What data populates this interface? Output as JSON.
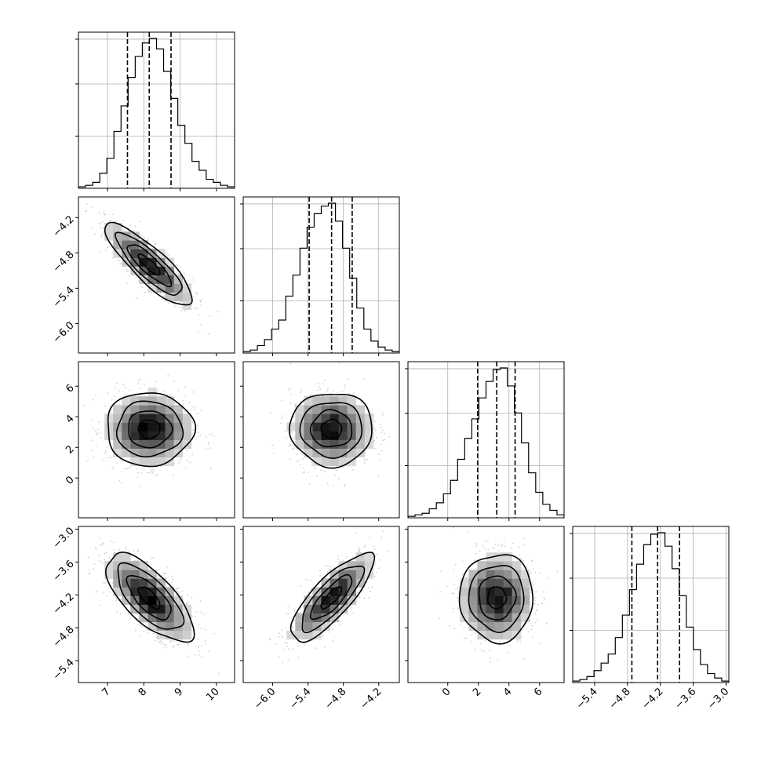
{
  "chart_data": {
    "type": "corner",
    "title": "",
    "parameters": [
      {
        "range": [
          6.2,
          10.5
        ],
        "ticks": [
          7,
          8,
          9,
          10
        ],
        "tick_labels": [
          "7",
          "8",
          "9",
          "10"
        ],
        "mean": 8.15,
        "sigma": 0.6,
        "quantiles": [
          7.55,
          8.15,
          8.75
        ]
      },
      {
        "range": [
          -6.5,
          -3.85
        ],
        "ticks": [
          -6.0,
          -5.4,
          -4.8,
          -4.2
        ],
        "tick_labels": [
          "−6.0",
          "−5.4",
          "−4.8",
          "−4.2"
        ],
        "mean": -5.0,
        "sigma": 0.35,
        "quantiles": [
          -5.38,
          -5.0,
          -4.65
        ]
      },
      {
        "range": [
          -2.6,
          7.6
        ],
        "ticks": [
          0,
          2,
          4,
          6
        ],
        "tick_labels": [
          "0",
          "2",
          "4",
          "6"
        ],
        "mean": 3.2,
        "sigma": 1.2,
        "quantiles": [
          1.95,
          3.2,
          4.4
        ]
      },
      {
        "range": [
          -5.8,
          -2.95
        ],
        "ticks": [
          -5.4,
          -4.8,
          -4.2,
          -3.6,
          -3.0
        ],
        "tick_labels": [
          "−5.4",
          "−4.8",
          "−4.2",
          "−3.6",
          "−3.0"
        ],
        "mean": -4.25,
        "sigma": 0.4,
        "quantiles": [
          -4.72,
          -4.25,
          -3.85
        ]
      }
    ],
    "histograms": [
      [
        0.01,
        0.02,
        0.04,
        0.1,
        0.2,
        0.38,
        0.55,
        0.74,
        0.88,
        0.97,
        1.0,
        0.93,
        0.78,
        0.6,
        0.42,
        0.3,
        0.18,
        0.12,
        0.06,
        0.04,
        0.02,
        0.01
      ],
      [
        0.01,
        0.02,
        0.05,
        0.09,
        0.16,
        0.22,
        0.38,
        0.52,
        0.7,
        0.84,
        0.93,
        0.98,
        1.0,
        0.88,
        0.7,
        0.5,
        0.3,
        0.16,
        0.08,
        0.04,
        0.02,
        0.01
      ],
      [
        0.01,
        0.02,
        0.03,
        0.06,
        0.1,
        0.16,
        0.25,
        0.39,
        0.53,
        0.66,
        0.8,
        0.91,
        0.99,
        1.0,
        0.88,
        0.7,
        0.5,
        0.3,
        0.17,
        0.09,
        0.05,
        0.02
      ],
      [
        0.01,
        0.02,
        0.04,
        0.08,
        0.13,
        0.19,
        0.3,
        0.45,
        0.62,
        0.79,
        0.92,
        0.99,
        1.0,
        0.91,
        0.76,
        0.58,
        0.37,
        0.22,
        0.12,
        0.06,
        0.03,
        0.01
      ]
    ],
    "correlations": {
      "1-0": -0.85,
      "2-0": 0.0,
      "2-1": 0.0,
      "3-0": -0.7,
      "3-1": 0.8,
      "3-2": 0.0
    },
    "grid": true,
    "contour_levels": [
      "0.5 sigma",
      "1 sigma",
      "1.5 sigma",
      "2 sigma"
    ]
  }
}
